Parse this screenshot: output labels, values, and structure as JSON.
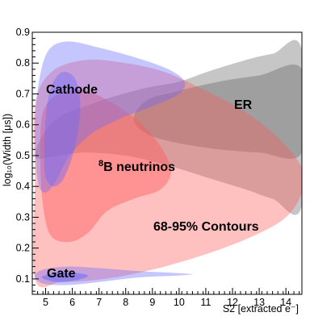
{
  "chart_data": {
    "type": "area",
    "title": "",
    "xlabel": "S2 [extracted e⁻]",
    "ylabel": "log₁₀(Width [μs])",
    "xlim": [
      4.5,
      14.6
    ],
    "ylim": [
      0.05,
      0.9
    ],
    "xticks": [
      5,
      6,
      7,
      8,
      9,
      10,
      11,
      12,
      13,
      14
    ],
    "yticks": [
      0.1,
      0.2,
      0.3,
      0.4,
      0.5,
      0.6,
      0.7,
      0.8,
      0.9
    ],
    "contour_levels": [
      "68%",
      "95%"
    ],
    "series": [
      {
        "name": "ER",
        "color": "#808080",
        "outer": [
          [
            4.65,
            0.52
          ],
          [
            5.0,
            0.58
          ],
          [
            5.6,
            0.63
          ],
          [
            6.5,
            0.66
          ],
          [
            7.5,
            0.69
          ],
          [
            8.8,
            0.72
          ],
          [
            10.0,
            0.74
          ],
          [
            11.0,
            0.77
          ],
          [
            12.5,
            0.81
          ],
          [
            13.5,
            0.83
          ],
          [
            14.6,
            0.84
          ],
          [
            14.6,
            0.34
          ],
          [
            13.5,
            0.36
          ],
          [
            12.5,
            0.39
          ],
          [
            11.0,
            0.43
          ],
          [
            9.5,
            0.47
          ],
          [
            8.0,
            0.5
          ],
          [
            6.5,
            0.51
          ],
          [
            5.5,
            0.5
          ],
          [
            4.7,
            0.49
          ]
        ],
        "inner": [
          [
            8.3,
            0.62
          ],
          [
            8.8,
            0.68
          ],
          [
            10.0,
            0.71
          ],
          [
            11.5,
            0.74
          ],
          [
            13.0,
            0.76
          ],
          [
            14.6,
            0.78
          ],
          [
            14.6,
            0.51
          ],
          [
            13.0,
            0.51
          ],
          [
            11.5,
            0.52
          ],
          [
            10.0,
            0.54
          ],
          [
            8.8,
            0.57
          ]
        ]
      },
      {
        "name": "Cathode",
        "color": "#6a6aff",
        "outer": [
          [
            4.6,
            0.6
          ],
          [
            4.75,
            0.74
          ],
          [
            5.1,
            0.84
          ],
          [
            5.8,
            0.87
          ],
          [
            7.0,
            0.85
          ],
          [
            8.3,
            0.82
          ],
          [
            9.6,
            0.78
          ],
          [
            10.2,
            0.74
          ],
          [
            10.0,
            0.7
          ],
          [
            9.0,
            0.66
          ],
          [
            7.8,
            0.62
          ],
          [
            6.7,
            0.57
          ],
          [
            5.9,
            0.5
          ],
          [
            5.4,
            0.42
          ],
          [
            5.0,
            0.38
          ],
          [
            4.7,
            0.42
          ]
        ],
        "inner": [
          [
            4.95,
            0.5
          ],
          [
            5.0,
            0.62
          ],
          [
            5.2,
            0.72
          ],
          [
            5.6,
            0.77
          ],
          [
            6.1,
            0.75
          ],
          [
            6.3,
            0.66
          ],
          [
            6.1,
            0.53
          ],
          [
            5.7,
            0.43
          ],
          [
            5.3,
            0.4
          ],
          [
            5.0,
            0.43
          ]
        ]
      },
      {
        "name": "Gate",
        "color": "#6a6aff",
        "outer": [
          [
            4.6,
            0.11
          ],
          [
            4.9,
            0.13
          ],
          [
            5.8,
            0.14
          ],
          [
            7.0,
            0.135
          ],
          [
            8.5,
            0.125
          ],
          [
            9.7,
            0.12
          ],
          [
            10.5,
            0.115
          ],
          [
            9.7,
            0.11
          ],
          [
            8.5,
            0.105
          ],
          [
            7.0,
            0.09
          ],
          [
            5.8,
            0.08
          ],
          [
            4.9,
            0.085
          ]
        ],
        "inner": [
          [
            4.85,
            0.105
          ],
          [
            5.4,
            0.12
          ],
          [
            6.1,
            0.12
          ],
          [
            6.6,
            0.11
          ],
          [
            6.1,
            0.095
          ],
          [
            5.4,
            0.09
          ]
        ]
      },
      {
        "name": "8B neutrinos",
        "color": "#ff5a5a",
        "outer": [
          [
            4.6,
            0.42
          ],
          [
            4.6,
            0.66
          ],
          [
            5.2,
            0.77
          ],
          [
            6.5,
            0.81
          ],
          [
            8.0,
            0.8
          ],
          [
            9.5,
            0.77
          ],
          [
            11.0,
            0.71
          ],
          [
            12.5,
            0.64
          ],
          [
            13.8,
            0.55
          ],
          [
            14.6,
            0.46
          ],
          [
            14.6,
            0.38
          ],
          [
            14.0,
            0.3
          ],
          [
            12.8,
            0.24
          ],
          [
            11.0,
            0.18
          ],
          [
            9.0,
            0.13
          ],
          [
            7.2,
            0.1
          ],
          [
            5.6,
            0.09
          ],
          [
            4.6,
            0.1
          ]
        ],
        "inner": [
          [
            4.8,
            0.5
          ],
          [
            4.9,
            0.64
          ],
          [
            5.5,
            0.7
          ],
          [
            6.5,
            0.71
          ],
          [
            7.5,
            0.67
          ],
          [
            8.5,
            0.61
          ],
          [
            9.3,
            0.53
          ],
          [
            9.7,
            0.45
          ],
          [
            9.3,
            0.39
          ],
          [
            8.3,
            0.36
          ],
          [
            7.3,
            0.32
          ],
          [
            6.6,
            0.25
          ],
          [
            5.9,
            0.22
          ],
          [
            5.2,
            0.24
          ],
          [
            4.9,
            0.34
          ]
        ]
      }
    ],
    "annotations": [
      "Cathode",
      "ER",
      "8B neutrinos",
      "68-95% Contours",
      "Gate"
    ]
  }
}
